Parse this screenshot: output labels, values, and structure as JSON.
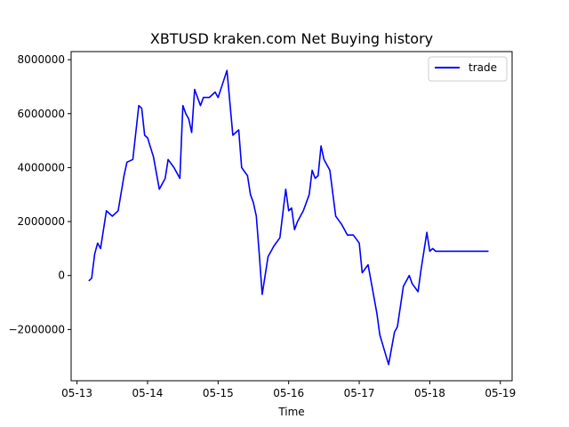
{
  "chart_data": {
    "type": "line",
    "title": "XBTUSD kraken.com Net Buying history",
    "xlabel": "Time",
    "ylabel": "",
    "xlim": [
      "2018-05-12T22:00",
      "2018-05-19T04:00"
    ],
    "ylim": [
      -3900000,
      8300000
    ],
    "x_ticks": [
      "05-13",
      "05-14",
      "05-15",
      "05-16",
      "05-17",
      "05-18",
      "05-19"
    ],
    "y_ticks": [
      8000000,
      6000000,
      4000000,
      2000000,
      0,
      -2000000
    ],
    "y_tick_labels": [
      "8000000",
      "6000000",
      "4000000",
      "2000000",
      "0",
      "−2000000"
    ],
    "grid": false,
    "legend_position": "top-right",
    "series": [
      {
        "name": "trade",
        "color": "#0000ff",
        "x": [
          "2018-05-13T04:00",
          "2018-05-13T05:00",
          "2018-05-13T06:00",
          "2018-05-13T07:00",
          "2018-05-13T08:00",
          "2018-05-13T10:00",
          "2018-05-13T11:00",
          "2018-05-13T12:00",
          "2018-05-13T14:00",
          "2018-05-13T16:00",
          "2018-05-13T17:00",
          "2018-05-13T19:00",
          "2018-05-13T21:00",
          "2018-05-13T22:00",
          "2018-05-13T23:00",
          "2018-05-14T00:00",
          "2018-05-14T02:00",
          "2018-05-14T04:00",
          "2018-05-14T06:00",
          "2018-05-14T07:00",
          "2018-05-14T09:00",
          "2018-05-14T11:00",
          "2018-05-14T12:00",
          "2018-05-14T13:00",
          "2018-05-14T14:00",
          "2018-05-14T15:00",
          "2018-05-14T16:00",
          "2018-05-14T18:00",
          "2018-05-14T19:00",
          "2018-05-14T21:00",
          "2018-05-14T23:00",
          "2018-05-15T00:00",
          "2018-05-15T03:00",
          "2018-05-15T05:00",
          "2018-05-15T07:00",
          "2018-05-15T08:00",
          "2018-05-15T10:00",
          "2018-05-15T11:00",
          "2018-05-15T12:00",
          "2018-05-15T13:00",
          "2018-05-15T14:00",
          "2018-05-15T15:00",
          "2018-05-15T17:00",
          "2018-05-15T19:00",
          "2018-05-15T21:00",
          "2018-05-15T23:00",
          "2018-05-16T00:00",
          "2018-05-16T01:00",
          "2018-05-16T02:00",
          "2018-05-16T03:00",
          "2018-05-16T05:00",
          "2018-05-16T06:00",
          "2018-05-16T07:00",
          "2018-05-16T08:00",
          "2018-05-16T09:00",
          "2018-05-16T10:00",
          "2018-05-16T11:00",
          "2018-05-16T12:00",
          "2018-05-16T14:00",
          "2018-05-16T16:00",
          "2018-05-16T18:00",
          "2018-05-16T20:00",
          "2018-05-16T22:00",
          "2018-05-17T00:00",
          "2018-05-17T01:00",
          "2018-05-17T03:00",
          "2018-05-17T06:00",
          "2018-05-17T07:00",
          "2018-05-17T10:00",
          "2018-05-17T12:00",
          "2018-05-17T13:00",
          "2018-05-17T15:00",
          "2018-05-17T17:00",
          "2018-05-17T18:00",
          "2018-05-17T20:00",
          "2018-05-17T21:00",
          "2018-05-17T23:00",
          "2018-05-18T00:00",
          "2018-05-18T01:00",
          "2018-05-18T02:00",
          "2018-05-18T04:00",
          "2018-05-18T06:00",
          "2018-05-18T07:00",
          "2018-05-18T08:00",
          "2018-05-18T10:00",
          "2018-05-18T12:00",
          "2018-05-18T14:00",
          "2018-05-18T15:00",
          "2018-05-18T17:00",
          "2018-05-18T18:00",
          "2018-05-18T19:00",
          "2018-05-18T20:00"
        ],
        "y": [
          -200000,
          -100000,
          800000,
          1200000,
          1000000,
          2400000,
          2300000,
          2200000,
          2400000,
          3700000,
          4200000,
          4300000,
          6300000,
          6200000,
          5200000,
          5100000,
          4400000,
          3200000,
          3600000,
          4300000,
          4000000,
          3600000,
          6300000,
          6000000,
          5800000,
          5300000,
          6900000,
          6300000,
          6600000,
          6600000,
          6800000,
          6600000,
          7600000,
          5200000,
          5400000,
          4000000,
          3700000,
          3000000,
          2700000,
          2200000,
          800000,
          -700000,
          700000,
          1100000,
          1400000,
          3200000,
          2400000,
          2500000,
          1700000,
          2000000,
          2400000,
          2700000,
          3000000,
          3900000,
          3600000,
          3700000,
          4800000,
          4300000,
          3900000,
          2200000,
          1900000,
          1500000,
          1500000,
          1200000,
          100000,
          400000,
          -1400000,
          -2200000,
          -3300000,
          -2100000,
          -1900000,
          -400000,
          0,
          -300000,
          -600000,
          200000,
          1600000,
          900000,
          1000000,
          900000,
          900000,
          900000,
          900000,
          900000,
          900000,
          900000,
          900000,
          900000,
          900000,
          900000,
          900000,
          900000
        ]
      }
    ]
  }
}
